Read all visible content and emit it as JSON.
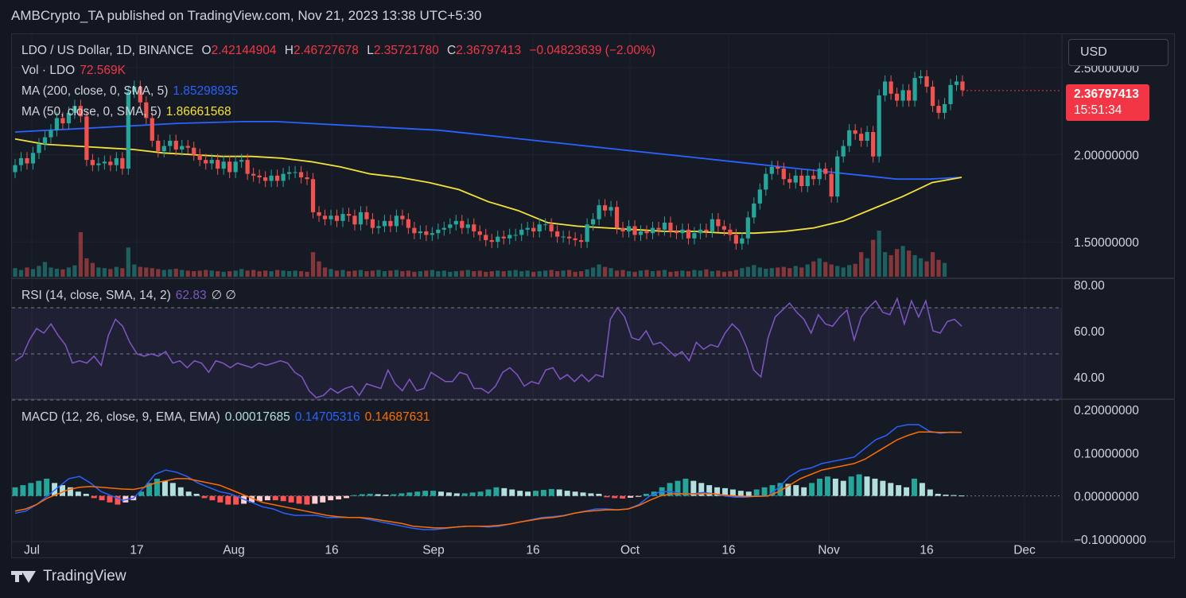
{
  "header": {
    "text": "AMBCrypto_TA published on TradingView.com, Nov 21, 2023 13:38 UTC+5:30"
  },
  "legend": {
    "symbol": "LDO / US Dollar, 1D, BINANCE",
    "o_label": "O",
    "o_value": "2.42144904",
    "h_label": "H",
    "h_value": "2.46727678",
    "l_label": "L",
    "l_value": "2.35721780",
    "c_label": "C",
    "c_value": "2.36797413",
    "change": "−0.04823639 (−2.00%)",
    "vol_label": "Vol · LDO",
    "vol_value": "72.569K",
    "ma200_label": "MA (200, close, 0, SMA, 5)",
    "ma200_value": "1.85298935",
    "ma50_label": "MA (50, close, 0, SMA, 5)",
    "ma50_value": "1.86661568",
    "rsi_label": "RSI (14, close, SMA, 14, 2)",
    "rsi_value": "62.83",
    "rsi_extra": "∅ ∅",
    "macd_label": "MACD (12, 26, close, 9, EMA, EMA)",
    "macd_hist": "0.00017685",
    "macd_line": "0.14705316",
    "macd_signal": "0.14687631"
  },
  "currency_button": "USD",
  "price_tag": {
    "price": "2.36797413",
    "countdown": "15:51:34"
  },
  "footer": {
    "brand": "TradingView"
  },
  "colors": {
    "up": "#26a69a",
    "down": "#ef5350",
    "ma200": "#2962ff",
    "ma50": "#f5e13a",
    "rsi": "#7e57c2",
    "macd": "#2962ff",
    "signal": "#ff6d00",
    "label_red": "#f23645"
  },
  "chart_data": [
    {
      "type": "candlestick",
      "ylim": [
        1.3,
        2.6
      ],
      "y_ticks": [
        "2.50000000",
        "2.00000000",
        "1.50000000"
      ],
      "x_ticks": [
        "Jul",
        "17",
        "Aug",
        "16",
        "Sep",
        "16",
        "Oct",
        "16",
        "Nov",
        "16",
        "Dec"
      ],
      "closes": [
        1.94,
        1.98,
        1.95,
        2.01,
        2.06,
        2.1,
        2.14,
        2.21,
        2.18,
        2.24,
        2.28,
        2.22,
        1.97,
        1.94,
        1.95,
        1.96,
        1.94,
        1.98,
        1.92,
        2.36,
        2.39,
        2.3,
        2.21,
        2.08,
        2.02,
        2.05,
        2.08,
        2.03,
        2.05,
        2.04,
        2.0,
        1.97,
        1.95,
        1.97,
        1.92,
        1.96,
        1.9,
        1.96,
        1.97,
        1.89,
        1.88,
        1.87,
        1.85,
        1.88,
        1.85,
        1.89,
        1.9,
        1.9,
        1.87,
        1.86,
        1.67,
        1.65,
        1.63,
        1.65,
        1.62,
        1.66,
        1.65,
        1.6,
        1.67,
        1.63,
        1.58,
        1.59,
        1.62,
        1.59,
        1.65,
        1.63,
        1.58,
        1.55,
        1.56,
        1.54,
        1.55,
        1.57,
        1.58,
        1.6,
        1.62,
        1.58,
        1.6,
        1.56,
        1.54,
        1.51,
        1.5,
        1.53,
        1.52,
        1.54,
        1.54,
        1.57,
        1.58,
        1.56,
        1.6,
        1.6,
        1.56,
        1.53,
        1.53,
        1.52,
        1.51,
        1.5,
        1.6,
        1.63,
        1.71,
        1.68,
        1.7,
        1.58,
        1.56,
        1.59,
        1.54,
        1.56,
        1.55,
        1.58,
        1.57,
        1.61,
        1.56,
        1.55,
        1.57,
        1.52,
        1.55,
        1.57,
        1.56,
        1.63,
        1.59,
        1.57,
        1.54,
        1.49,
        1.52,
        1.64,
        1.72,
        1.8,
        1.89,
        1.93,
        1.92,
        1.86,
        1.84,
        1.88,
        1.82,
        1.88,
        1.86,
        1.92,
        1.89,
        1.76,
        1.99,
        2.05,
        2.14,
        2.12,
        2.08,
        2.13,
        1.99,
        2.34,
        2.42,
        2.35,
        2.31,
        2.37,
        2.31,
        2.44,
        2.45,
        2.39,
        2.28,
        2.24,
        2.29,
        2.4,
        2.42,
        2.37
      ],
      "ma200": [
        2.13,
        2.14,
        2.15,
        2.16,
        2.17,
        2.18,
        2.185,
        2.19,
        2.19,
        2.18,
        2.17,
        2.16,
        2.15,
        2.14,
        2.12,
        2.1,
        2.08,
        2.06,
        2.04,
        2.02,
        2.0,
        1.98,
        1.96,
        1.94,
        1.92,
        1.9,
        1.88,
        1.86,
        1.86,
        1.87
      ],
      "ma50": [
        2.09,
        2.06,
        2.05,
        2.04,
        2.03,
        2.01,
        2.0,
        1.99,
        1.99,
        1.98,
        1.96,
        1.93,
        1.89,
        1.87,
        1.84,
        1.8,
        1.73,
        1.68,
        1.61,
        1.59,
        1.58,
        1.57,
        1.56,
        1.56,
        1.55,
        1.55,
        1.56,
        1.58,
        1.62,
        1.69,
        1.76,
        1.84,
        1.87
      ],
      "volume": [
        28,
        22,
        30,
        25,
        35,
        48,
        30,
        26,
        24,
        30,
        37,
        145,
        60,
        45,
        30,
        28,
        25,
        32,
        28,
        95,
        40,
        32,
        30,
        28,
        25,
        22,
        24,
        26,
        22,
        20,
        18,
        20,
        22,
        20,
        18,
        16,
        18,
        20,
        25,
        20,
        22,
        18,
        20,
        18,
        22,
        20,
        18,
        20,
        18,
        16,
        80,
        50,
        30,
        25,
        20,
        22,
        18,
        20,
        22,
        18,
        20,
        22,
        18,
        20,
        22,
        18,
        20,
        16,
        18,
        20,
        22,
        18,
        20,
        16,
        18,
        20,
        22,
        18,
        20,
        16,
        18,
        20,
        18,
        20,
        22,
        18,
        20,
        16,
        18,
        20,
        22,
        18,
        20,
        22,
        16,
        18,
        24,
        30,
        40,
        32,
        28,
        20,
        22,
        18,
        16,
        20,
        22,
        18,
        20,
        22,
        16,
        18,
        20,
        18,
        22,
        20,
        24,
        18,
        20,
        16,
        18,
        22,
        28,
        32,
        38,
        30,
        26,
        28,
        30,
        32,
        28,
        35,
        30,
        40,
        50,
        60,
        48,
        40,
        35,
        30,
        38,
        42,
        80,
        60,
        120,
        150,
        80,
        70,
        90,
        100,
        85,
        70,
        60,
        50,
        80,
        55,
        45
      ]
    },
    {
      "type": "line",
      "name_label": "RSI",
      "ylim": [
        30,
        80
      ],
      "y_ticks": [
        "80.00",
        "60.00",
        "40.00"
      ],
      "bands": [
        70,
        50,
        30
      ],
      "values": [
        47,
        49,
        56,
        61,
        59,
        63,
        58,
        54,
        46,
        47,
        46,
        49,
        45,
        58,
        65,
        62,
        55,
        50,
        49,
        50,
        49,
        51,
        46,
        47,
        44,
        47,
        46,
        42,
        47,
        46,
        44,
        46,
        45,
        44,
        46,
        45,
        46,
        47,
        46,
        42,
        40,
        34,
        31,
        32,
        35,
        33,
        35,
        36,
        32,
        37,
        36,
        35,
        43,
        37,
        34,
        39,
        34,
        35,
        42,
        40,
        38,
        38,
        42,
        41,
        35,
        35,
        33,
        36,
        42,
        44,
        41,
        36,
        38,
        37,
        43,
        44,
        39,
        41,
        38,
        41,
        38,
        41,
        40,
        65,
        70,
        66,
        57,
        56,
        60,
        54,
        55,
        52,
        49,
        51,
        47,
        55,
        52,
        54,
        53,
        59,
        63,
        60,
        53,
        43,
        40,
        57,
        66,
        69,
        72,
        68,
        65,
        59,
        67,
        63,
        62,
        66,
        69,
        56,
        66,
        70,
        73,
        68,
        67,
        74,
        63,
        73,
        66,
        73,
        60,
        59,
        64,
        65,
        62
      ]
    },
    {
      "type": "macd",
      "ylim": [
        -0.1,
        0.2
      ],
      "y_ticks": [
        "0.20000000",
        "0.10000000",
        "0.00000000",
        "−0.10000000"
      ],
      "macd": [
        -0.04,
        -0.035,
        -0.02,
        0.0,
        0.02,
        0.04,
        0.045,
        0.03,
        0.01,
        0.0,
        -0.01,
        -0.005,
        0.02,
        0.05,
        0.06,
        0.055,
        0.045,
        0.03,
        0.02,
        0.01,
        0.005,
        -0.005,
        -0.015,
        -0.025,
        -0.03,
        -0.04,
        -0.045,
        -0.045,
        -0.045,
        -0.05,
        -0.05,
        -0.05,
        -0.05,
        -0.055,
        -0.06,
        -0.065,
        -0.07,
        -0.075,
        -0.078,
        -0.078,
        -0.075,
        -0.072,
        -0.07,
        -0.07,
        -0.072,
        -0.07,
        -0.065,
        -0.06,
        -0.055,
        -0.05,
        -0.048,
        -0.045,
        -0.04,
        -0.035,
        -0.03,
        -0.03,
        -0.032,
        -0.03,
        -0.02,
        0.0,
        0.01,
        0.01,
        0.005,
        0.005,
        0.008,
        0.005,
        0.0,
        -0.003,
        -0.003,
        0.0,
        0.0,
        0.02,
        0.045,
        0.06,
        0.065,
        0.075,
        0.08,
        0.085,
        0.09,
        0.11,
        0.13,
        0.14,
        0.16,
        0.165,
        0.165,
        0.15,
        0.145,
        0.148,
        0.147
      ],
      "signal": [
        -0.035,
        -0.03,
        -0.02,
        -0.005,
        0.005,
        0.015,
        0.02,
        0.022,
        0.02,
        0.018,
        0.016,
        0.015,
        0.02,
        0.03,
        0.035,
        0.04,
        0.04,
        0.035,
        0.03,
        0.025,
        0.015,
        0.005,
        -0.005,
        -0.015,
        -0.02,
        -0.025,
        -0.03,
        -0.035,
        -0.04,
        -0.045,
        -0.048,
        -0.05,
        -0.05,
        -0.052,
        -0.056,
        -0.06,
        -0.064,
        -0.07,
        -0.072,
        -0.074,
        -0.074,
        -0.072,
        -0.07,
        -0.07,
        -0.07,
        -0.068,
        -0.065,
        -0.06,
        -0.056,
        -0.052,
        -0.05,
        -0.046,
        -0.04,
        -0.036,
        -0.034,
        -0.032,
        -0.032,
        -0.03,
        -0.022,
        -0.01,
        0.0,
        0.005,
        0.005,
        0.004,
        0.005,
        0.005,
        0.002,
        0.0,
        -0.001,
        -0.001,
        0.0,
        0.01,
        0.025,
        0.04,
        0.05,
        0.06,
        0.065,
        0.07,
        0.075,
        0.085,
        0.1,
        0.115,
        0.13,
        0.14,
        0.148,
        0.148,
        0.147,
        0.147,
        0.147
      ],
      "hist": [
        0.02,
        0.025,
        0.03,
        0.035,
        0.04,
        0.03,
        0.025,
        0.02,
        0.01,
        0.005,
        -0.005,
        -0.01,
        -0.015,
        -0.02,
        -0.015,
        -0.01,
        0.01,
        0.03,
        0.04,
        0.035,
        0.03,
        0.02,
        0.01,
        0.005,
        -0.005,
        -0.01,
        -0.015,
        -0.02,
        -0.02,
        -0.018,
        -0.015,
        -0.012,
        -0.01,
        -0.01,
        -0.012,
        -0.015,
        -0.018,
        -0.02,
        -0.018,
        -0.015,
        -0.01,
        -0.008,
        -0.005,
        0.002,
        0.004,
        0.005,
        0.004,
        0.003,
        0.004,
        0.006,
        0.008,
        0.01,
        0.012,
        0.012,
        0.01,
        0.008,
        0.006,
        0.006,
        0.008,
        0.01,
        0.015,
        0.02,
        0.018,
        0.015,
        0.012,
        0.01,
        0.012,
        0.014,
        0.016,
        0.015,
        0.012,
        0.01,
        0.008,
        0.006,
        0.005,
        -0.003,
        -0.005,
        -0.006,
        -0.004,
        -0.002,
        0.005,
        0.01,
        0.02,
        0.03,
        0.035,
        0.04,
        0.035,
        0.03,
        0.025,
        0.02,
        0.018,
        0.015,
        0.012,
        0.01,
        0.015,
        0.02,
        0.025,
        0.03,
        0.028,
        0.025,
        0.02,
        0.03,
        0.04,
        0.045,
        0.04,
        0.035,
        0.045,
        0.05,
        0.045,
        0.04,
        0.035,
        0.03,
        0.025,
        0.02,
        0.04,
        0.03,
        0.015,
        0.005,
        0.003,
        0.002,
        0.001
      ]
    }
  ]
}
